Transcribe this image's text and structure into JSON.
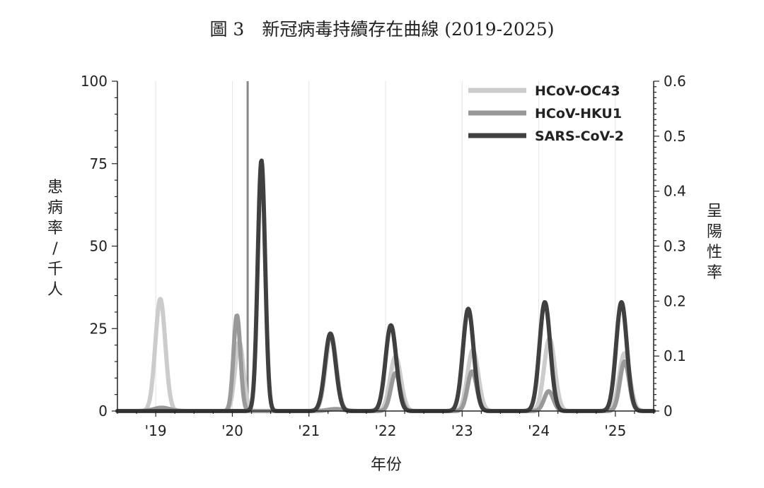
{
  "figure": {
    "title": "圖 3　新冠病毒持續存在曲線 (2019-2025)"
  },
  "chart_data": {
    "type": "line",
    "title": "圖 3　新冠病毒持續存在曲線 (2019-2025)",
    "xlabel": "年份",
    "ylabel": "患病率 / 千人",
    "ylabel_right": "呈陽性率",
    "xlim": [
      2018.5,
      2025.5
    ],
    "ylim": [
      0,
      100
    ],
    "ylim_right": [
      0,
      0.6
    ],
    "x_ticks": [
      2019,
      2020,
      2021,
      2022,
      2023,
      2024,
      2025
    ],
    "x_tick_labels": [
      "'19",
      "'20",
      "'21",
      "'22",
      "'23",
      "'24",
      "'25"
    ],
    "y_ticks": [
      0,
      25,
      50,
      75,
      100
    ],
    "y_tick_labels": [
      "0",
      "25",
      "50",
      "75",
      "100"
    ],
    "y_right_ticks": [
      0,
      0.1,
      0.2,
      0.3,
      0.4,
      0.5,
      0.6
    ],
    "y_right_tick_labels": [
      "0",
      "0.1",
      "0.2",
      "0.3",
      "0.4",
      "0.5",
      "0.6"
    ],
    "vertical_marker_x": 2020.2,
    "legend_position": "top-right",
    "grid": "vertical",
    "series": [
      {
        "name": "HCoV-OC43",
        "color": "#cccccc",
        "peaks": [
          {
            "x": 2019.06,
            "y": 34,
            "width": 0.065
          },
          {
            "x": 2020.09,
            "y": 21,
            "width": 0.055
          },
          {
            "x": 2021.29,
            "y": 23,
            "width": 0.07
          },
          {
            "x": 2022.13,
            "y": 16.5,
            "width": 0.07
          },
          {
            "x": 2023.14,
            "y": 18.5,
            "width": 0.07
          },
          {
            "x": 2024.14,
            "y": 22,
            "width": 0.07
          },
          {
            "x": 2025.12,
            "y": 17.5,
            "width": 0.07
          }
        ]
      },
      {
        "name": "HCoV-HKU1",
        "color": "#999999",
        "peaks": [
          {
            "x": 2019.08,
            "y": 1,
            "width": 0.1
          },
          {
            "x": 2020.06,
            "y": 29,
            "width": 0.045
          },
          {
            "x": 2021.35,
            "y": 0.6,
            "width": 0.1
          },
          {
            "x": 2022.13,
            "y": 11.5,
            "width": 0.06
          },
          {
            "x": 2023.13,
            "y": 12,
            "width": 0.06
          },
          {
            "x": 2024.13,
            "y": 6,
            "width": 0.06
          },
          {
            "x": 2025.12,
            "y": 15,
            "width": 0.06
          }
        ]
      },
      {
        "name": "SARS-CoV-2",
        "color": "#404040",
        "peaks": [
          {
            "x": 2020.38,
            "y": 76,
            "width": 0.048
          },
          {
            "x": 2021.28,
            "y": 23.5,
            "width": 0.07
          },
          {
            "x": 2022.07,
            "y": 26,
            "width": 0.07
          },
          {
            "x": 2023.08,
            "y": 31,
            "width": 0.07
          },
          {
            "x": 2024.08,
            "y": 33,
            "width": 0.07
          },
          {
            "x": 2025.08,
            "y": 33,
            "width": 0.07
          }
        ]
      }
    ]
  }
}
